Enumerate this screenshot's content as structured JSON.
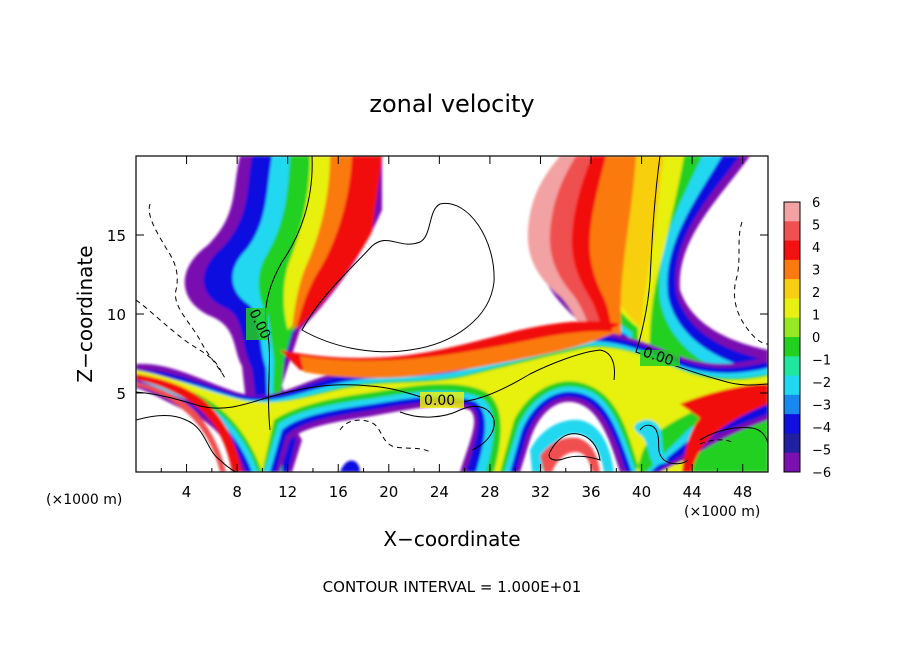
{
  "chart_data": {
    "type": "heatmap",
    "title": "zonal velocity",
    "xlabel": "X−coordinate",
    "ylabel": "Z−coordinate",
    "x_unit_label_left": "(×1000 m)",
    "x_unit_label_right": "(×1000 m)",
    "xlim": [
      0,
      50
    ],
    "ylim": [
      0,
      20
    ],
    "x_ticks": [
      4,
      8,
      12,
      16,
      20,
      24,
      28,
      32,
      36,
      40,
      44,
      48
    ],
    "y_ticks": [
      5,
      10,
      15
    ],
    "colorbar": {
      "min": -6,
      "max": 6,
      "labels": [
        "6",
        "5",
        "4",
        "3",
        "2",
        "1",
        "0",
        "−1",
        "−2",
        "−3",
        "−4",
        "−5",
        "−6"
      ],
      "colors": [
        "#f2a2a2",
        "#f05050",
        "#f21010",
        "#fa7a10",
        "#f7cf10",
        "#e8f010",
        "#96e820",
        "#22d020",
        "#20e6a0",
        "#20d8f0",
        "#1888f0",
        "#1010e0",
        "#2020a0",
        "#7a10b0"
      ]
    },
    "contour_labels": [
      "0.00",
      "0.00",
      "0.00"
    ],
    "contour_interval_text": "CONTOUR INTERVAL = 1.000E+01",
    "grid": false
  }
}
